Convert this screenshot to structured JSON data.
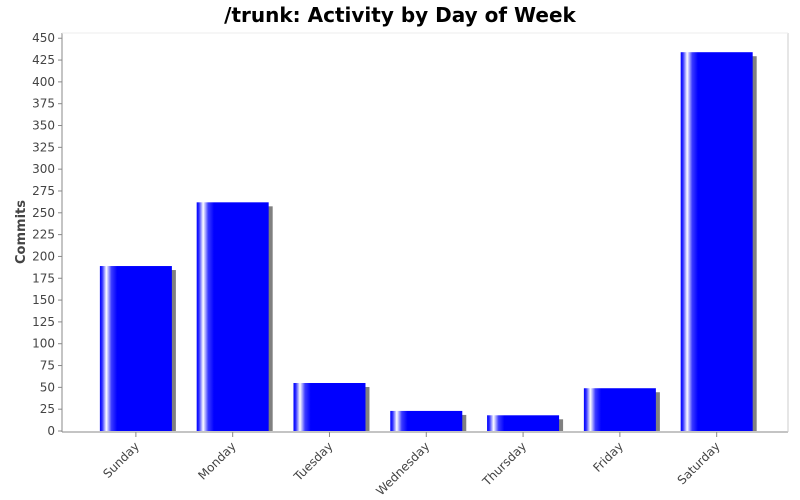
{
  "chart_data": {
    "type": "bar",
    "title": "/trunk: Activity by Day of Week",
    "xlabel": "",
    "ylabel": "Commits",
    "categories": [
      "Sunday",
      "Monday",
      "Tuesday",
      "Wednesday",
      "Thursday",
      "Friday",
      "Saturday"
    ],
    "values": [
      189,
      262,
      55,
      23,
      18,
      49,
      434
    ],
    "ylim": [
      0,
      456
    ],
    "yticks": [
      0,
      25,
      50,
      75,
      100,
      125,
      150,
      175,
      200,
      225,
      250,
      275,
      300,
      325,
      350,
      375,
      400,
      425,
      450
    ],
    "bar_color": "#0000ff",
    "highlight_color": "#ffffff",
    "shadow_color": "#808080",
    "axis_color": "#888888",
    "grid": false,
    "legend": "none"
  }
}
